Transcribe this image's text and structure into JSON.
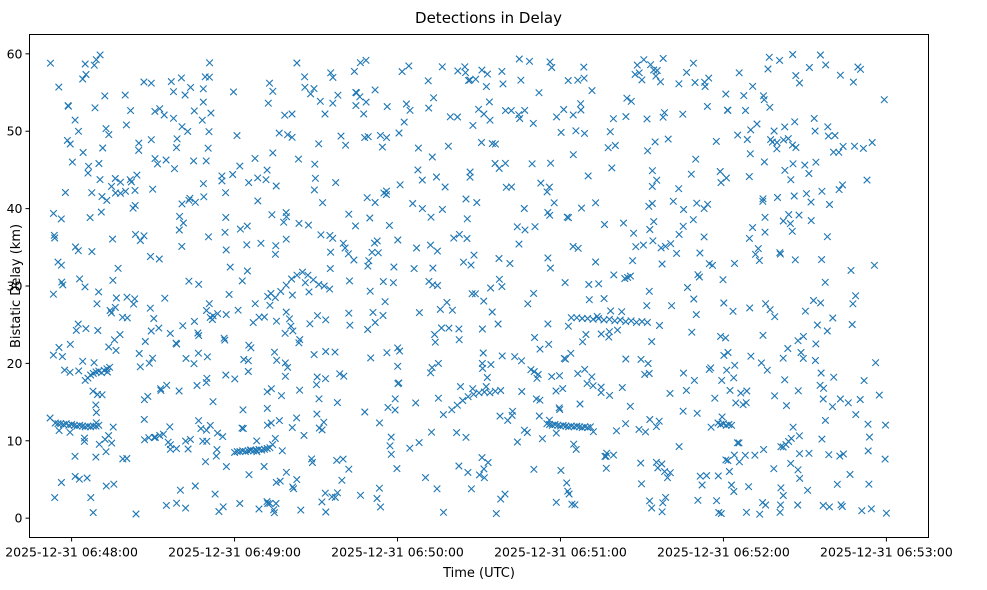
{
  "chart_data": {
    "type": "scatter",
    "title": "Detections in Delay",
    "xlabel": "Time (UTC)",
    "ylabel": "Bistatic Delay (km)",
    "marker": "x",
    "color": "#1f77b4",
    "grid": false,
    "xlim_seconds": [
      -15.5,
      315.5
    ],
    "ylim": [
      -2.5,
      62.5
    ],
    "x_ticks": [
      {
        "seconds": 0,
        "label": "2025-12-31 06:48:00"
      },
      {
        "seconds": 60,
        "label": "2025-12-31 06:49:00"
      },
      {
        "seconds": 120,
        "label": "2025-12-31 06:50:00"
      },
      {
        "seconds": 180,
        "label": "2025-12-31 06:51:00"
      },
      {
        "seconds": 240,
        "label": "2025-12-31 06:52:00"
      },
      {
        "seconds": 300,
        "label": "2025-12-31 06:53:00"
      }
    ],
    "y_ticks": [
      0,
      10,
      20,
      30,
      40,
      50,
      60
    ],
    "x_origin": "2025-12-31 06:48:00",
    "x_unit": "seconds after x_origin",
    "tracks": [
      {
        "x": [
          -6,
          -5,
          -4,
          -3,
          -2,
          -1,
          0,
          1,
          2,
          3,
          4,
          5,
          6,
          7,
          8,
          9,
          10
        ],
        "y": [
          12.3,
          12.2,
          12.2,
          12.1,
          12.2,
          12.0,
          12.1,
          12.0,
          11.9,
          12.0,
          11.9,
          11.8,
          11.9,
          11.8,
          11.9,
          11.9,
          12.0
        ]
      },
      {
        "x": [
          5,
          6,
          7,
          8,
          9,
          10,
          11,
          12,
          13,
          14
        ],
        "y": [
          17.8,
          18.1,
          18.5,
          18.7,
          18.9,
          19.0,
          18.8,
          19.1,
          19.3,
          19.5
        ]
      },
      {
        "x": [
          60,
          61,
          62,
          63,
          64,
          65,
          66,
          67,
          68,
          69,
          70,
          71,
          72,
          73,
          74,
          75
        ],
        "y": [
          8.5,
          8.6,
          8.6,
          8.7,
          8.6,
          8.7,
          8.8,
          8.7,
          8.8,
          8.9,
          8.8,
          8.9,
          9.0,
          9.1,
          9.5,
          10.3
        ]
      },
      {
        "x": [
          71,
          73,
          75,
          77,
          79,
          81,
          83,
          85,
          87,
          89,
          91,
          93,
          95
        ],
        "y": [
          26.0,
          27.5,
          28.5,
          29.3,
          30.1,
          30.9,
          31.4,
          31.8,
          31.4,
          30.8,
          30.2,
          30.0,
          29.6
        ]
      },
      {
        "x": [
          140,
          142,
          144,
          146,
          148,
          150,
          152,
          154,
          156,
          158
        ],
        "y": [
          14.0,
          14.6,
          15.2,
          15.7,
          16.0,
          16.2,
          16.3,
          16.2,
          16.4,
          16.5
        ]
      },
      {
        "x": [
          175,
          176,
          177,
          178,
          179,
          180,
          181,
          182,
          183,
          184,
          185,
          186,
          187,
          188,
          189,
          190,
          191
        ],
        "y": [
          12.2,
          12.1,
          12.0,
          12.1,
          12.0,
          11.9,
          12.0,
          11.9,
          11.8,
          11.9,
          11.8,
          11.9,
          11.8,
          11.7,
          11.8,
          11.7,
          11.8
        ]
      },
      {
        "x": [
          184,
          186,
          188,
          190,
          192,
          194,
          196,
          198,
          200,
          202,
          204,
          206,
          208,
          210,
          212
        ],
        "y": [
          25.9,
          25.9,
          25.8,
          25.8,
          25.7,
          25.8,
          25.6,
          25.7,
          25.5,
          25.6,
          25.4,
          25.5,
          25.3,
          25.4,
          25.3
        ]
      },
      {
        "x": [
          195,
          198,
          201
        ],
        "y": [
          23.8,
          24.1,
          24.3
        ]
      },
      {
        "x": [
          238,
          239,
          240,
          241,
          242,
          243
        ],
        "y": [
          12.3,
          12.1,
          12.2,
          12.0,
          12.1,
          12.0
        ]
      },
      {
        "x": [
          262,
          263,
          264,
          265
        ],
        "y": [
          9.2,
          9.5,
          9.9,
          10.3
        ]
      }
    ],
    "scatter_points": {
      "count": 1060,
      "x_range": [
        -8,
        300
      ],
      "y_range": [
        0.5,
        60
      ],
      "distribution": "approximately uniform"
    }
  }
}
